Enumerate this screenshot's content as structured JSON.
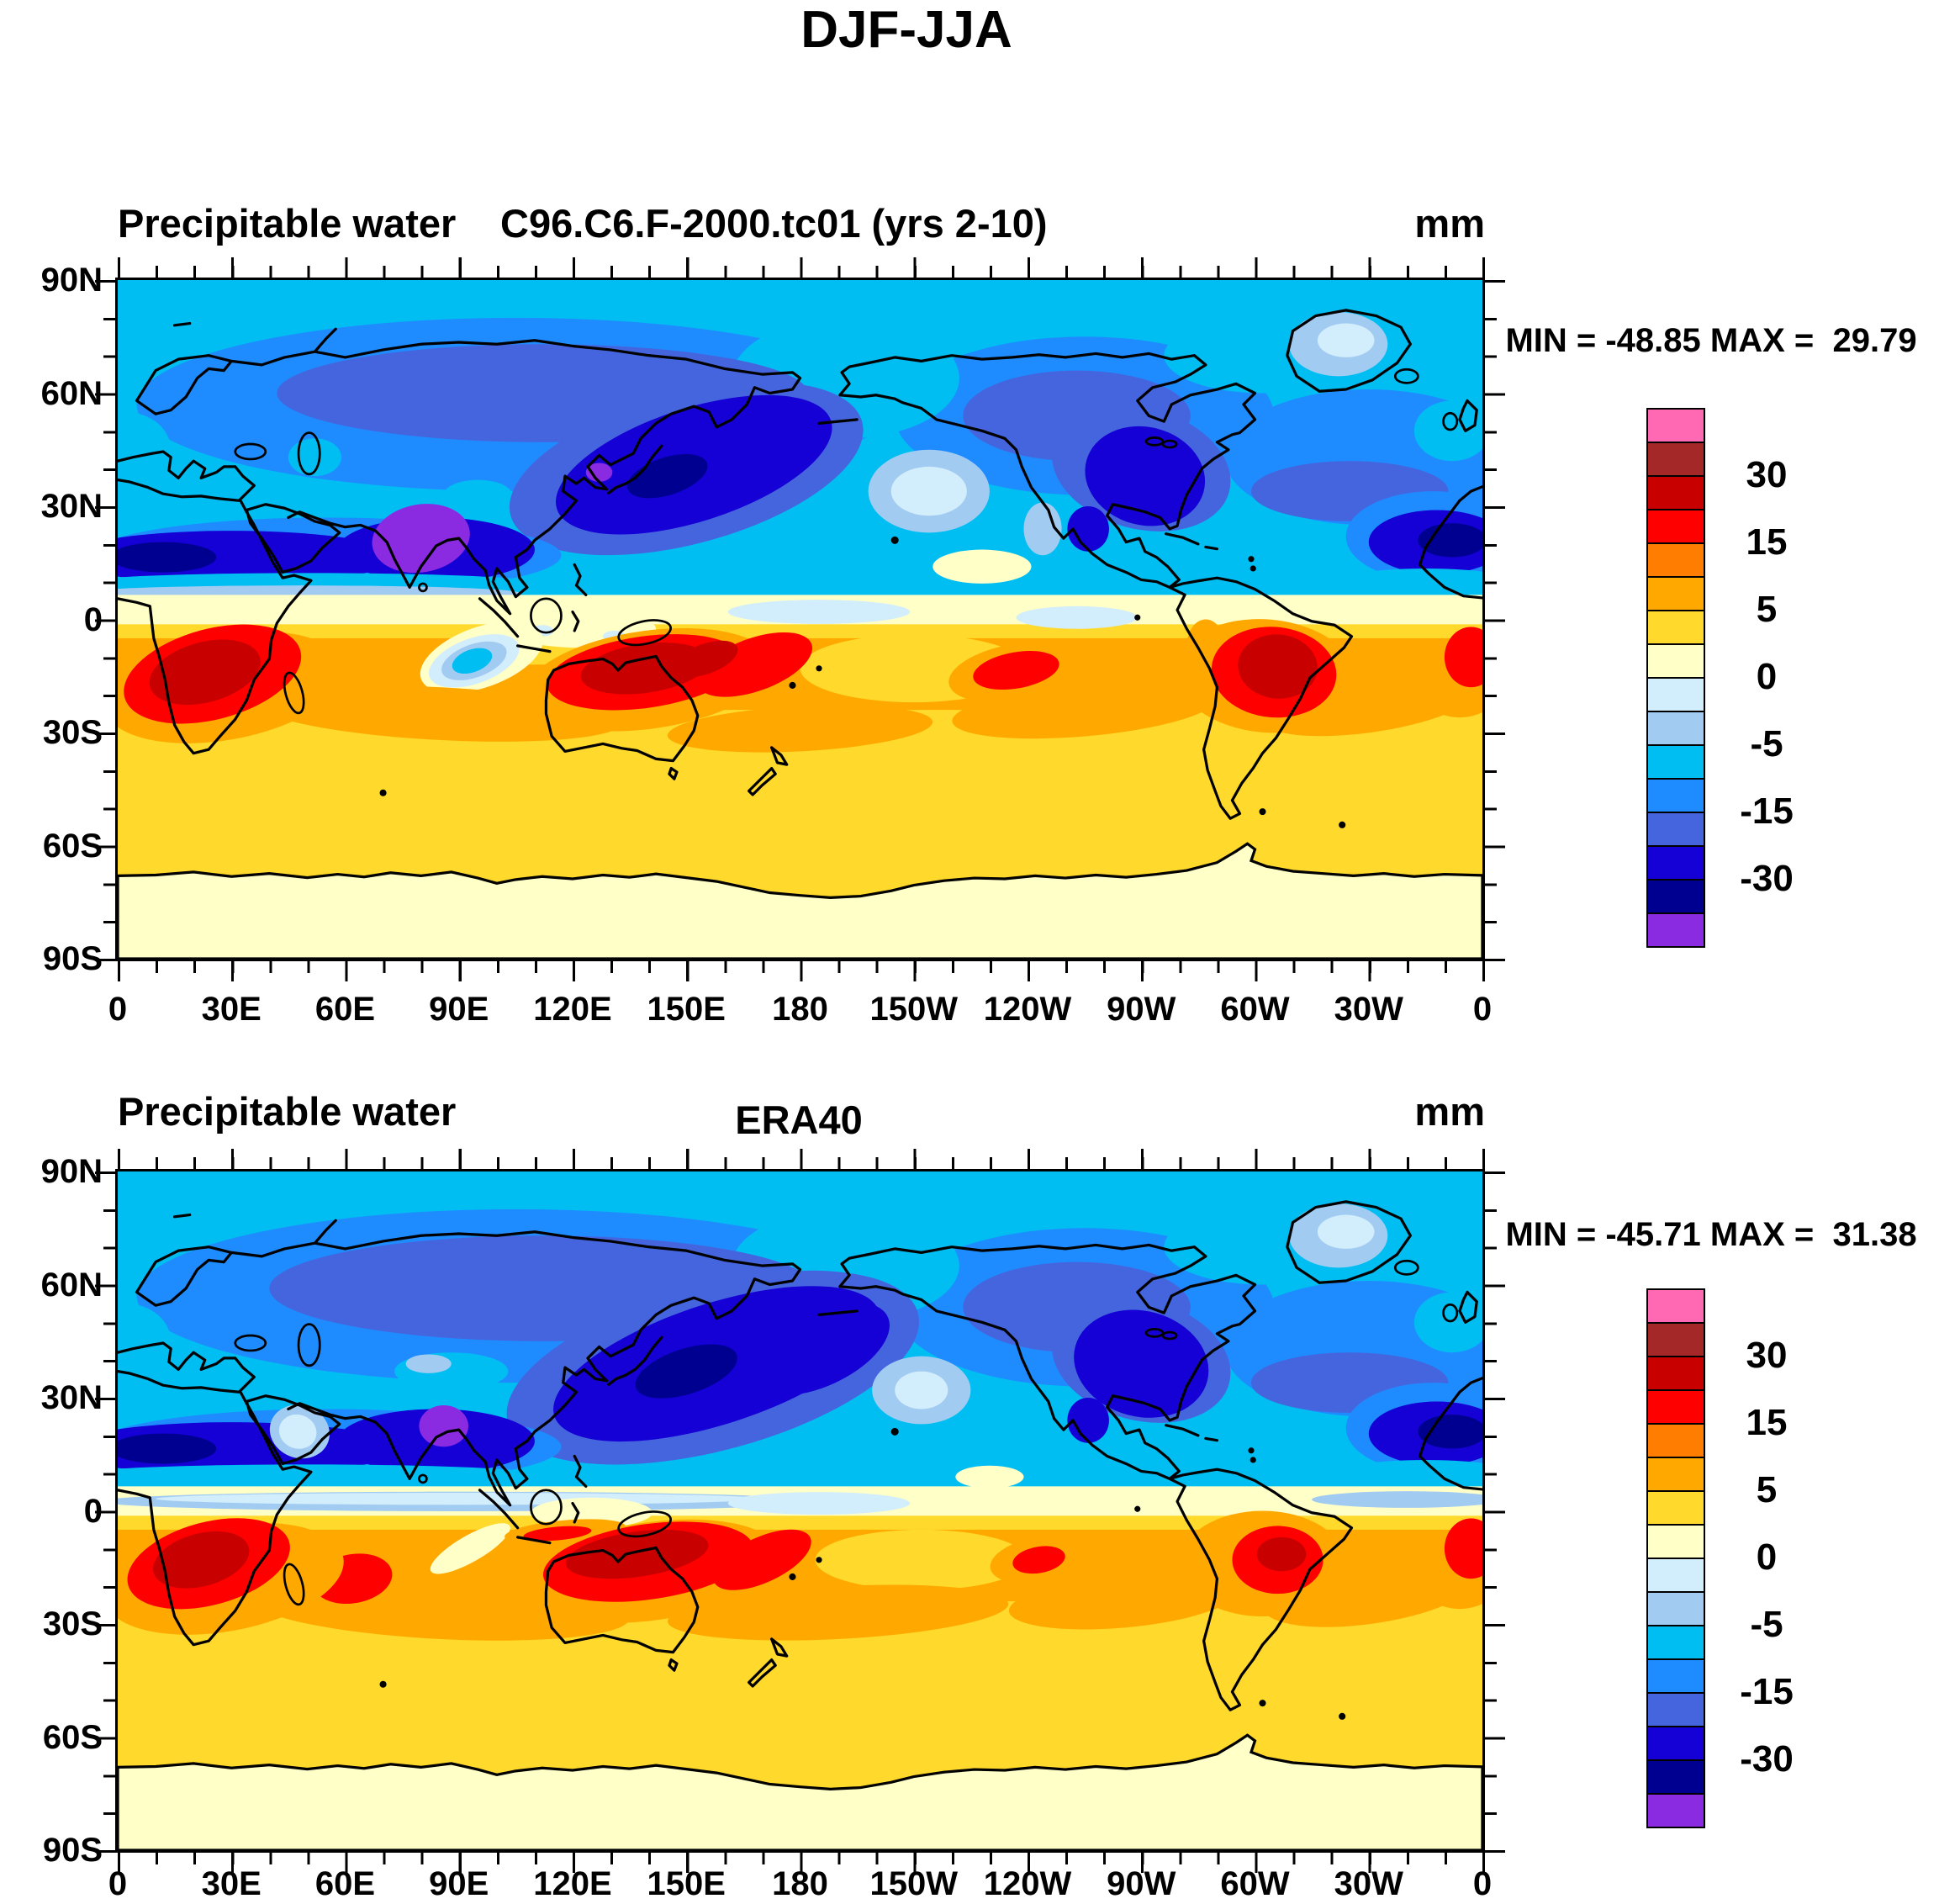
{
  "title": "DJF-JJA",
  "panels": [
    {
      "field_label": "Precipitable water",
      "case_label": "C96.C6.F-2000.tc01 (yrs 2-10)",
      "units": "mm",
      "stats": "MIN = -48.85 MAX =  29.79"
    },
    {
      "field_label": "Precipitable water",
      "case_label": "ERA40",
      "units": "mm",
      "stats": "MIN = -45.71 MAX =  31.38"
    }
  ],
  "axes": {
    "lat_labels": [
      "90N",
      "60N",
      "30N",
      "0",
      "30S",
      "60S",
      "90S"
    ],
    "lon_labels": [
      "0",
      "30E",
      "60E",
      "90E",
      "120E",
      "150E",
      "180",
      "150W",
      "120W",
      "90W",
      "60W",
      "30W",
      "0"
    ]
  },
  "colorbar": {
    "tick_labels": [
      "30",
      "15",
      "5",
      "0",
      "-5",
      "-15",
      "-30"
    ],
    "colors": [
      "#FF69B4",
      "#A52828",
      "#C80000",
      "#FF0000",
      "#FF7D00",
      "#FFA900",
      "#FFD92B",
      "#FFFFC8",
      "#D2EDFC",
      "#A2CBF2",
      "#00BEF2",
      "#1E8CFF",
      "#4565DE",
      "#1500D6",
      "#000090",
      "#8A2BE2"
    ]
  },
  "chart_data": {
    "type": "heatmap",
    "title": "DJF-JJA",
    "variable": "Precipitable water",
    "units": "mm",
    "projection": "cylindrical lat-lon, longitude 0E eastward through 180 to 0, latitude 90N to 90S",
    "x_ticks": [
      "0",
      "30E",
      "60E",
      "90E",
      "120E",
      "150E",
      "180",
      "150W",
      "120W",
      "90W",
      "60W",
      "30W",
      "0"
    ],
    "y_ticks": [
      "90N",
      "60N",
      "30N",
      "0",
      "30S",
      "60S",
      "90S"
    ],
    "contour_levels": [
      -40,
      -30,
      -20,
      -15,
      -10,
      -5,
      -2,
      0,
      2,
      5,
      10,
      15,
      20,
      30,
      40
    ],
    "palette_low_to_high": [
      "#8A2BE2",
      "#000090",
      "#1500D6",
      "#4565DE",
      "#1E8CFF",
      "#00BEF2",
      "#A2CBF2",
      "#D2EDFC",
      "#FFFFC8",
      "#FFD92B",
      "#FFA900",
      "#FF7D00",
      "#FF0000",
      "#C80000",
      "#A52828",
      "#FF69B4"
    ],
    "panels": [
      {
        "name": "C96.C6.F-2000.tc01 (yrs 2-10)",
        "min": -48.85,
        "max": 29.79,
        "pattern": "Negative (blue) values cover the northern hemisphere with minima below -40 mm (purple) over India and strong minima over East Asia, NE North America and the tropical N Atlantic; positive (yellow/orange/red) values cover the southern hemisphere with maxima of 20-30 mm over southern Africa, Australia and South America; near-zero cream band along the equator and over Antarctica; isolated negative pocket in the tropical east Indian Ocean."
      },
      {
        "name": "ERA40",
        "min": -45.71,
        "max": 31.38,
        "pattern": "Same seasonal dipole as the model: blue northern hemisphere with minimum below -40 mm (small purple patch) near NE India/Bay of Bengal, broad dark-blue wedge across East Asia and the NW Pacific; positive southern hemisphere with red maxima over southern Africa, Australia, the west Indian Ocean and South America; cream near-zero band at the equator and over Antarctica."
      }
    ]
  }
}
